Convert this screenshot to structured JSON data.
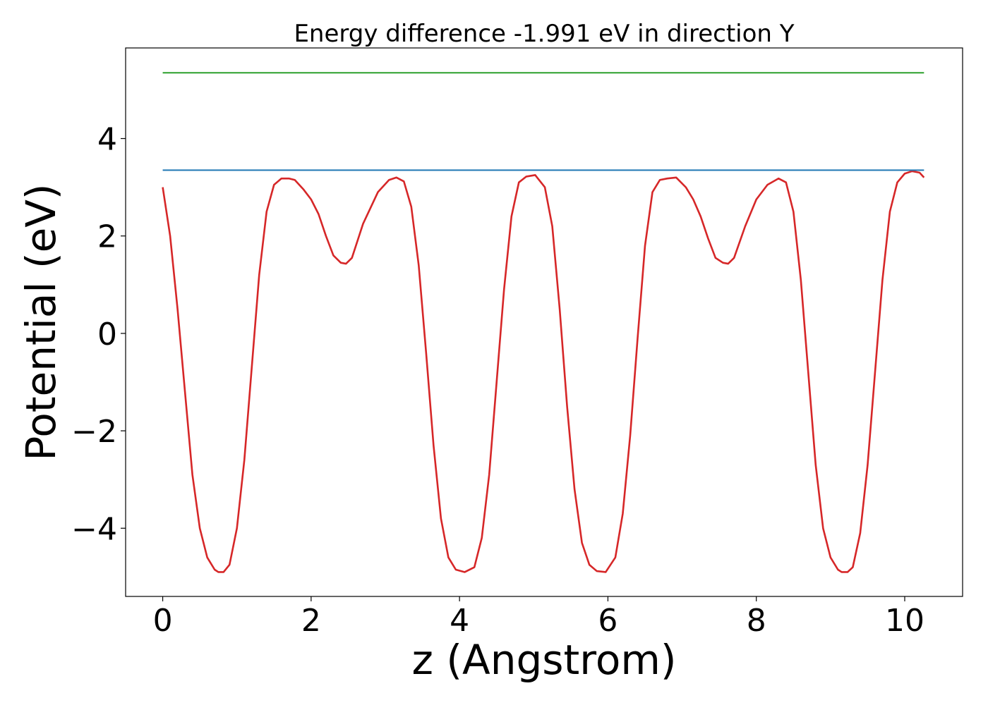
{
  "chart_data": {
    "type": "line",
    "title": "Energy difference -1.991 eV in direction Y",
    "xlabel": "z (Angstrom)",
    "ylabel": "Potential (eV)",
    "xlim": [
      -0.5,
      10.78
    ],
    "ylim": [
      -5.4,
      5.86
    ],
    "grid": false,
    "x_ticks": [
      0,
      2,
      4,
      6,
      8,
      10
    ],
    "x_tick_labels": [
      "0",
      "2",
      "4",
      "6",
      "8",
      "10"
    ],
    "y_ticks": [
      -4,
      -2,
      0,
      2,
      4
    ],
    "y_tick_labels": [
      "−4",
      "−2",
      "0",
      "2",
      "4"
    ],
    "series": [
      {
        "color": "#d62728",
        "x": [
          0,
          0.1,
          0.2,
          0.3,
          0.4,
          0.5,
          0.6,
          0.7,
          0.75,
          0.82,
          0.9,
          1.0,
          1.1,
          1.2,
          1.3,
          1.4,
          1.5,
          1.6,
          1.7,
          1.78,
          1.9,
          2.0,
          2.1,
          2.2,
          2.3,
          2.4,
          2.47,
          2.55,
          2.7,
          2.9,
          3.05,
          3.15,
          3.25,
          3.35,
          3.45,
          3.55,
          3.65,
          3.75,
          3.85,
          3.95,
          4.07,
          4.2,
          4.3,
          4.4,
          4.5,
          4.6,
          4.7,
          4.8,
          4.9,
          5.02,
          5.15,
          5.25,
          5.35,
          5.45,
          5.55,
          5.65,
          5.75,
          5.85,
          5.97,
          6.1,
          6.2,
          6.3,
          6.4,
          6.5,
          6.6,
          6.7,
          6.8,
          6.92,
          7.05,
          7.15,
          7.25,
          7.35,
          7.45,
          7.55,
          7.62,
          7.7,
          7.85,
          8.0,
          8.15,
          8.3,
          8.4,
          8.5,
          8.6,
          8.7,
          8.8,
          8.9,
          9.0,
          9.1,
          9.15,
          9.23,
          9.3,
          9.4,
          9.5,
          9.6,
          9.7,
          9.8,
          9.9,
          10.0,
          10.1,
          10.2,
          10.26
        ],
        "values": [
          3.0,
          2.0,
          0.5,
          -1.2,
          -2.9,
          -4.0,
          -4.6,
          -4.85,
          -4.9,
          -4.9,
          -4.75,
          -4.0,
          -2.6,
          -0.7,
          1.2,
          2.5,
          3.05,
          3.18,
          3.18,
          3.15,
          2.95,
          2.75,
          2.45,
          2.0,
          1.6,
          1.45,
          1.43,
          1.55,
          2.25,
          2.9,
          3.15,
          3.2,
          3.12,
          2.6,
          1.4,
          -0.4,
          -2.3,
          -3.8,
          -4.6,
          -4.85,
          -4.9,
          -4.8,
          -4.2,
          -2.9,
          -1.0,
          0.9,
          2.4,
          3.1,
          3.22,
          3.25,
          3.0,
          2.2,
          0.5,
          -1.5,
          -3.2,
          -4.3,
          -4.75,
          -4.88,
          -4.9,
          -4.6,
          -3.7,
          -2.1,
          -0.1,
          1.8,
          2.9,
          3.15,
          3.18,
          3.2,
          3.0,
          2.75,
          2.4,
          1.95,
          1.55,
          1.45,
          1.43,
          1.55,
          2.2,
          2.75,
          3.05,
          3.18,
          3.1,
          2.5,
          1.1,
          -0.8,
          -2.7,
          -4.0,
          -4.6,
          -4.85,
          -4.9,
          -4.9,
          -4.8,
          -4.1,
          -2.7,
          -0.8,
          1.1,
          2.5,
          3.1,
          3.28,
          3.33,
          3.3,
          3.2
        ]
      },
      {
        "color": "#1f77b4",
        "x": [
          0,
          10.26
        ],
        "values": [
          3.35,
          3.35
        ]
      },
      {
        "color": "#2ca02c",
        "x": [
          0,
          10.26
        ],
        "values": [
          5.35,
          5.35
        ]
      }
    ]
  }
}
